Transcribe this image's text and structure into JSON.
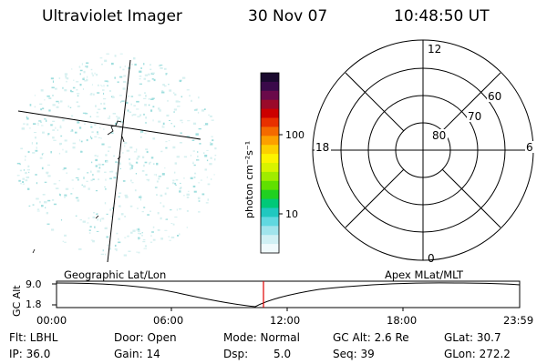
{
  "header": {
    "instrument": "Ultraviolet Imager",
    "date": "30 Nov 07",
    "time": "10:48:50 UT"
  },
  "colorbar": {
    "unit_label": "photon cm⁻²s⁻¹",
    "ticks": [
      "100",
      "10"
    ],
    "colors": [
      "#1a0a2e",
      "#3a0a4a",
      "#6a0a4a",
      "#9a0a2a",
      "#cc0000",
      "#e83000",
      "#f46a00",
      "#fca000",
      "#fcd000",
      "#fcf400",
      "#d8f400",
      "#a0ec00",
      "#60e000",
      "#20d020",
      "#00c878",
      "#20c8c0",
      "#60d8e0",
      "#a0e4ec",
      "#d0f0f4",
      "#f0fafc"
    ]
  },
  "polar_grid": {
    "lat_labels": [
      "80",
      "70",
      "60"
    ],
    "mlt_labels": [
      "12",
      "18",
      "6",
      "0"
    ]
  },
  "orbit_plot": {
    "left_label": "Geographic Lat/Lon",
    "right_label": "Apex MLat/MLT",
    "yaxis_label": "GC Alt",
    "y_ticks": [
      "9.0",
      "1.8"
    ],
    "x_ticks": [
      "00:00",
      "06:00",
      "12:00",
      "18:00",
      "23:59"
    ],
    "marker_color": "#e00000"
  },
  "status": {
    "flt": "Flt: LBHL",
    "ip": "IP: 36.0",
    "door": "Door: Open",
    "gain": "Gain: 14",
    "mode": "Mode: Normal",
    "dsp_label": "Dsp:",
    "dsp_value": "5.0",
    "gcalt": "GC Alt: 2.6 Re",
    "seq": "Seq: 39",
    "glat": "GLat: 30.7",
    "glon": "GLon: 272.2"
  }
}
